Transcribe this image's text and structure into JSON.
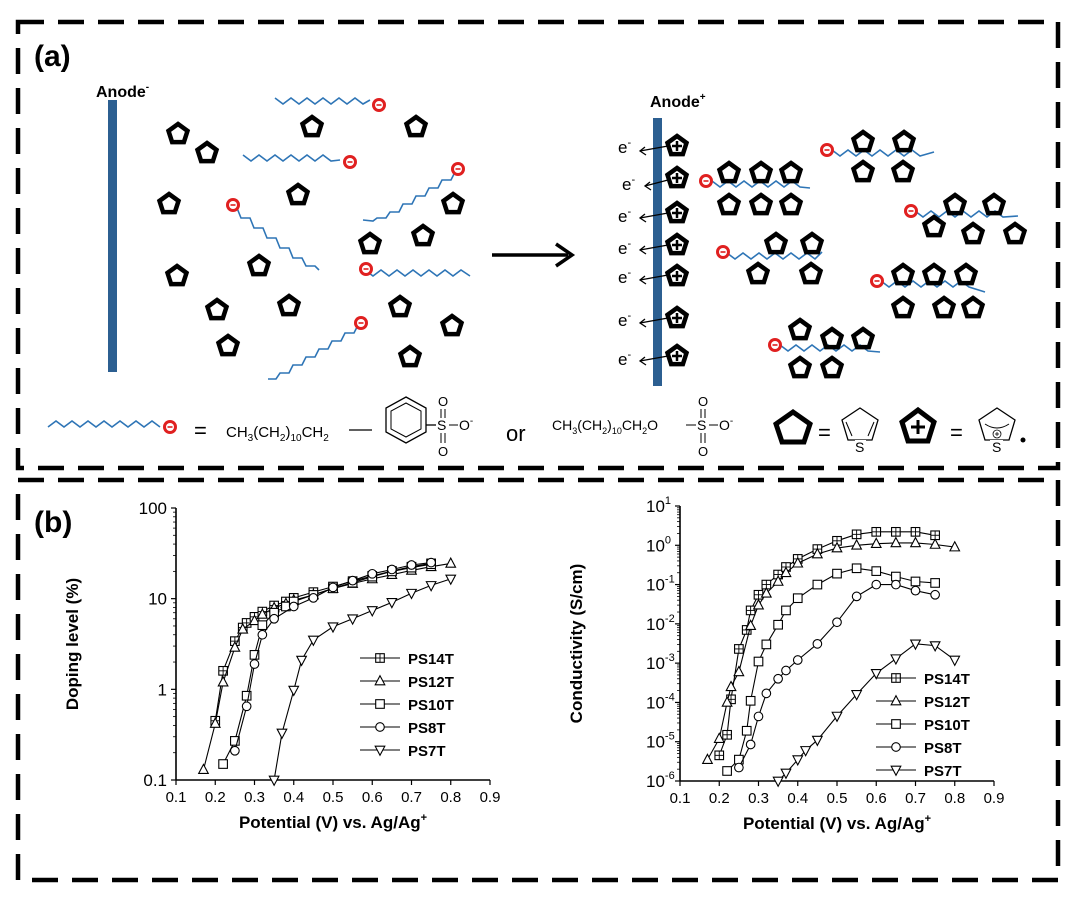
{
  "panel_a": {
    "label": "(a)",
    "anode_neg": "Anode",
    "anode_neg_sup": "-",
    "anode_pos": "Anode",
    "anode_pos_sup": "+",
    "electron": "e",
    "electron_sup": "-",
    "legend": {
      "eq": "=",
      "formula1": "CH3(CH2)10CH2",
      "or": "or",
      "formula2": "CH3(CH2)10CH2O",
      "sulfonate_s": "S",
      "sulfonate_o": "O",
      "sulfonate_om": "O",
      "sulfonate_charge": "-",
      "thiophene_s": "S",
      "radical_s": "S"
    }
  },
  "panel_b": {
    "label": "(b)"
  },
  "colors": {
    "chain": "#2e75b6",
    "anion": "#e02020",
    "electrode": "#2c5f91",
    "border": "#000000"
  },
  "chart_data": [
    {
      "type": "line",
      "title": "",
      "xlabel": "Potential (V) vs. Ag/Ag",
      "xlabel_sup": "+",
      "ylabel": "Doping level (%)",
      "xscale": "linear",
      "yscale": "log",
      "xlim": [
        0.1,
        0.9
      ],
      "ylim": [
        0.1,
        100
      ],
      "xticks": [
        "0.1",
        "0.2",
        "0.3",
        "0.4",
        "0.5",
        "0.6",
        "0.7",
        "0.8",
        "0.9"
      ],
      "yticks": [
        "0.1",
        "1",
        "10",
        "100"
      ],
      "legend_position": "lower-right",
      "series": [
        {
          "name": "PS14T",
          "marker": "square-plus",
          "x": [
            0.2,
            0.22,
            0.25,
            0.27,
            0.28,
            0.3,
            0.32,
            0.35,
            0.38,
            0.4,
            0.45,
            0.5,
            0.55,
            0.6,
            0.65,
            0.7,
            0.75
          ],
          "y": [
            0.45,
            1.6,
            3.4,
            4.8,
            5.4,
            6.3,
            7.2,
            8.4,
            9.3,
            10.2,
            11.8,
            13.6,
            15.6,
            17.8,
            20.2,
            22.5,
            24.5
          ]
        },
        {
          "name": "PS12T",
          "marker": "triangle-up",
          "x": [
            0.17,
            0.2,
            0.22,
            0.25,
            0.27,
            0.3,
            0.32,
            0.35,
            0.38,
            0.4,
            0.45,
            0.5,
            0.55,
            0.6,
            0.65,
            0.7,
            0.75,
            0.8
          ],
          "y": [
            0.13,
            0.42,
            1.2,
            2.9,
            4.6,
            5.7,
            6.7,
            7.9,
            8.8,
            9.6,
            11.0,
            12.9,
            14.7,
            16.5,
            18.4,
            20.5,
            22.5,
            24.5
          ]
        },
        {
          "name": "PS10T",
          "marker": "square",
          "x": [
            0.22,
            0.25,
            0.28,
            0.3,
            0.32,
            0.35,
            0.38,
            0.4,
            0.45,
            0.5,
            0.55,
            0.6,
            0.65,
            0.7,
            0.75
          ],
          "y": [
            0.15,
            0.27,
            0.85,
            2.4,
            5.1,
            7.0,
            8.2,
            9.3,
            11.0,
            13.0,
            15.0,
            17.5,
            20.0,
            22.0,
            24.0
          ]
        },
        {
          "name": "PS8T",
          "marker": "circle",
          "x": [
            0.25,
            0.28,
            0.3,
            0.32,
            0.35,
            0.4,
            0.45,
            0.5,
            0.55,
            0.6,
            0.65,
            0.7,
            0.75
          ],
          "y": [
            0.21,
            0.65,
            1.9,
            4.0,
            6.0,
            8.2,
            10.2,
            13.3,
            15.8,
            18.8,
            21.0,
            23.5,
            25.0
          ]
        },
        {
          "name": "PS7T",
          "marker": "triangle-down",
          "x": [
            0.35,
            0.37,
            0.4,
            0.42,
            0.45,
            0.5,
            0.55,
            0.6,
            0.65,
            0.7,
            0.75,
            0.8
          ],
          "y": [
            0.1,
            0.33,
            0.98,
            2.1,
            3.5,
            4.9,
            6.0,
            7.4,
            9.1,
            11.5,
            14.0,
            16.5
          ]
        }
      ]
    },
    {
      "type": "line",
      "title": "",
      "xlabel": "Potential (V) vs. Ag/Ag",
      "xlabel_sup": "+",
      "ylabel": "Conductivity (S/cm)",
      "xscale": "linear",
      "yscale": "log",
      "xlim": [
        0.1,
        0.9
      ],
      "ylim": [
        1e-06,
        10
      ],
      "xticks": [
        "0.1",
        "0.2",
        "0.3",
        "0.4",
        "0.5",
        "0.6",
        "0.7",
        "0.8",
        "0.9"
      ],
      "ytick_labels": [
        "10",
        "10",
        "10",
        "10",
        "10",
        "10",
        "10",
        "10"
      ],
      "ytick_exponents": [
        "-6",
        "-5",
        "-4",
        "-3",
        "-2",
        "-1",
        "0",
        "1"
      ],
      "legend_position": "lower-right",
      "series": [
        {
          "name": "PS14T",
          "marker": "square-plus",
          "x": [
            0.2,
            0.22,
            0.23,
            0.25,
            0.27,
            0.28,
            0.3,
            0.32,
            0.35,
            0.37,
            0.4,
            0.45,
            0.5,
            0.55,
            0.6,
            0.65,
            0.7,
            0.75
          ],
          "y": [
            4.5e-06,
            1.5e-05,
            0.00012,
            0.0023,
            0.007,
            0.022,
            0.055,
            0.1,
            0.18,
            0.28,
            0.45,
            0.8,
            1.3,
            1.9,
            2.2,
            2.2,
            2.2,
            1.8
          ]
        },
        {
          "name": "PS12T",
          "marker": "triangle-up",
          "x": [
            0.17,
            0.2,
            0.22,
            0.23,
            0.25,
            0.28,
            0.3,
            0.32,
            0.35,
            0.37,
            0.4,
            0.45,
            0.5,
            0.55,
            0.6,
            0.65,
            0.7,
            0.75,
            0.8
          ],
          "y": [
            3.5e-06,
            1.2e-05,
            0.0001,
            0.00025,
            0.0006,
            0.009,
            0.03,
            0.06,
            0.12,
            0.2,
            0.35,
            0.6,
            0.85,
            1.0,
            1.1,
            1.15,
            1.15,
            1.05,
            0.9
          ]
        },
        {
          "name": "PS10T",
          "marker": "square",
          "x": [
            0.22,
            0.25,
            0.27,
            0.28,
            0.3,
            0.32,
            0.35,
            0.37,
            0.4,
            0.45,
            0.5,
            0.55,
            0.6,
            0.65,
            0.7,
            0.75
          ],
          "y": [
            1.8e-06,
            3.5e-06,
            1.9e-05,
            0.00011,
            0.0011,
            0.003,
            0.0095,
            0.022,
            0.045,
            0.1,
            0.19,
            0.26,
            0.22,
            0.16,
            0.12,
            0.11
          ]
        },
        {
          "name": "PS8T",
          "marker": "circle",
          "x": [
            0.25,
            0.28,
            0.3,
            0.32,
            0.35,
            0.37,
            0.4,
            0.45,
            0.5,
            0.55,
            0.6,
            0.65,
            0.7,
            0.75
          ],
          "y": [
            2.2e-06,
            8.5e-06,
            4.4e-05,
            0.00017,
            0.0004,
            0.00065,
            0.0012,
            0.0031,
            0.011,
            0.05,
            0.1,
            0.1,
            0.07,
            0.055
          ]
        },
        {
          "name": "PS7T",
          "marker": "triangle-down",
          "x": [
            0.35,
            0.37,
            0.4,
            0.42,
            0.45,
            0.5,
            0.55,
            0.6,
            0.65,
            0.7,
            0.75,
            0.8
          ],
          "y": [
            1e-06,
            1.6e-06,
            3.5e-06,
            6e-06,
            1.1e-05,
            4.5e-05,
            0.00016,
            0.00055,
            0.0013,
            0.0031,
            0.0028,
            0.0012
          ]
        }
      ]
    }
  ]
}
